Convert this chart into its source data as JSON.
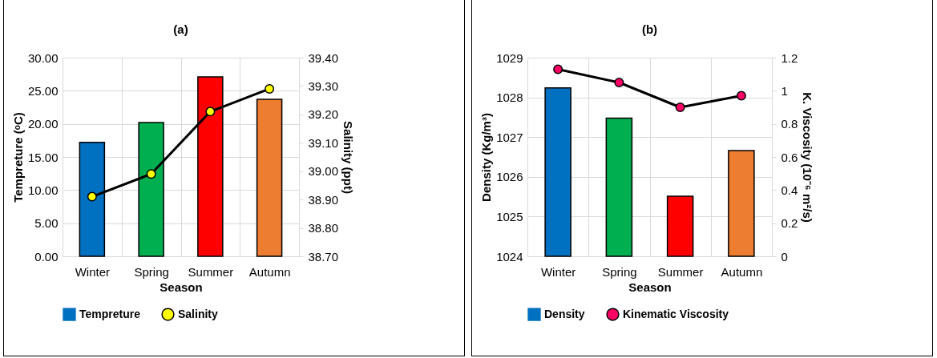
{
  "chart_data": [
    {
      "type": "bar",
      "title": "(a)",
      "xlabel": "Season",
      "ylabel": "Tempreture (ᵒC)",
      "y2label": "Salinity  (ppt)",
      "categories": [
        "Winter",
        "Spring",
        "Summer",
        "Autumn"
      ],
      "series": [
        {
          "name": "Tempreture",
          "color": "#0070c0",
          "colors": [
            "#0070c0",
            "#00b050",
            "#ff0000",
            "#ed7d31"
          ],
          "values": [
            17.2,
            20.2,
            27.1,
            23.7
          ]
        },
        {
          "name": "Salinity",
          "type": "line",
          "axis": "y2",
          "color": "#000000",
          "colors": [
            "#ffff00",
            "#ffff00",
            "#ffff00",
            "#ffff00"
          ],
          "values": [
            38.91,
            38.99,
            39.21,
            39.29
          ]
        }
      ],
      "ylim": [
        0,
        30
      ],
      "yticks": [
        {
          "value": 0,
          "label": "0.00"
        },
        {
          "value": 5,
          "label": "5.00"
        },
        {
          "value": 10,
          "label": "10.00"
        },
        {
          "value": 15,
          "label": "15.00"
        },
        {
          "value": 20,
          "label": "20.00"
        },
        {
          "value": 25,
          "label": "25.00"
        },
        {
          "value": 30,
          "label": "30.00"
        }
      ],
      "y2lim": [
        38.7,
        39.4
      ],
      "y2ticks": [
        {
          "value": 38.7,
          "label": "38.70"
        },
        {
          "value": 38.8,
          "label": "38.80"
        },
        {
          "value": 38.9,
          "label": "38.90"
        },
        {
          "value": 39,
          "label": "39.00"
        },
        {
          "value": 39.1,
          "label": "39.10"
        },
        {
          "value": 39.2,
          "label": "39.20"
        },
        {
          "value": 39.3,
          "label": "39.30"
        },
        {
          "value": 39.4,
          "label": "39.40"
        }
      ],
      "grid": true,
      "legend": "bottom",
      "marker": "circle"
    },
    {
      "type": "bar",
      "title": "(b)",
      "xlabel": "Season",
      "ylabel": "Density (Kg/m³)",
      "y2label": "K. Viscosity (10⁻⁶ m²/s)",
      "categories": [
        "Winter",
        "Spring",
        "Summer",
        "Autumn"
      ],
      "series": [
        {
          "name": "Density",
          "color": "#0070c0",
          "colors": [
            "#0070c0",
            "#00b050",
            "#ff0000",
            "#ed7d31"
          ],
          "values": [
            1028.24,
            1027.48,
            1025.51,
            1026.66
          ]
        },
        {
          "name": "Kinematic Viscosity",
          "type": "line",
          "axis": "y2",
          "color": "#000000",
          "colors": [
            "#ff0066",
            "#ff0066",
            "#ff0066",
            "#ff0066"
          ],
          "values": [
            1.13,
            1.05,
            0.9,
            0.97
          ]
        }
      ],
      "ylim": [
        1024,
        1029
      ],
      "yticks": [
        1024,
        1025,
        1026,
        1027,
        1028,
        1029
      ],
      "y2lim": [
        0,
        1.2
      ],
      "y2ticks": [
        0,
        0.2,
        0.4,
        0.6,
        0.8,
        1,
        1.2
      ],
      "grid": true,
      "legend": "bottom",
      "marker": "circle"
    }
  ]
}
